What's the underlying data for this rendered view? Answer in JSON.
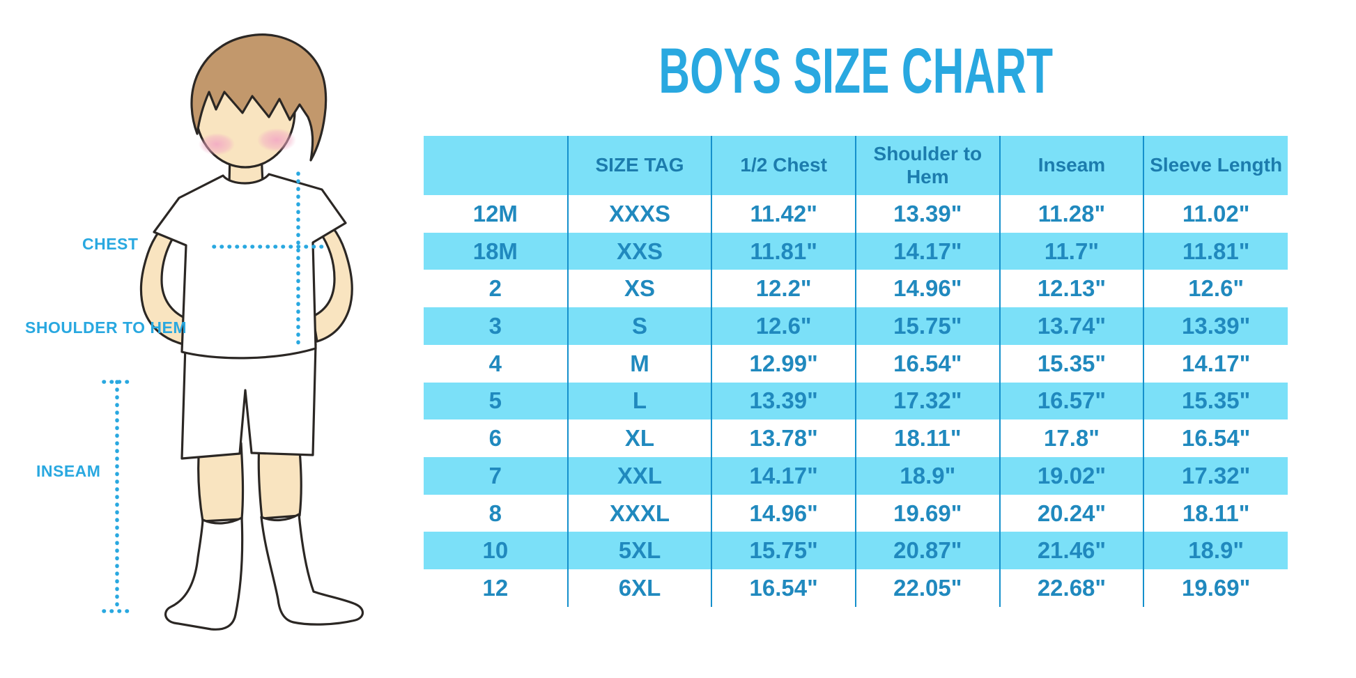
{
  "title": "BOYS SIZE CHART",
  "measurement_labels": {
    "chest": "CHEST",
    "shoulder_to_hem": "SHOULDER TO HEM",
    "inseam": "INSEAM"
  },
  "illustration": {
    "description": "cartoon boy with brown hair, white t-shirt, white shorts and knee-high white socks, hands behind back, with dotted measurement guides for chest, shoulder-to-hem and inseam"
  },
  "colors": {
    "accent_blue": "#29A8E0",
    "table_fill": "#7BE0F8",
    "header_text": "#1C7CAD",
    "cell_text": "#2089BE",
    "grid_line": "#1590CC",
    "skin": "#F9E4C0",
    "hair": "#C2986C",
    "cheek": "#F2A9C4",
    "outline": "#2B2724"
  },
  "chart_data": {
    "type": "table",
    "title": "BOYS SIZE CHART",
    "units": "inches",
    "columns": [
      "",
      "SIZE TAG",
      "1/2 Chest",
      "Shoulder to Hem",
      "Inseam",
      "Sleeve Length"
    ],
    "rows": [
      [
        "12M",
        "XXXS",
        "11.42\"",
        "13.39\"",
        "11.28\"",
        "11.02\""
      ],
      [
        "18M",
        "XXS",
        "11.81\"",
        "14.17\"",
        "11.7\"",
        "11.81\""
      ],
      [
        "2",
        "XS",
        "12.2\"",
        "14.96\"",
        "12.13\"",
        "12.6\""
      ],
      [
        "3",
        "S",
        "12.6\"",
        "15.75\"",
        "13.74\"",
        "13.39\""
      ],
      [
        "4",
        "M",
        "12.99\"",
        "16.54\"",
        "15.35\"",
        "14.17\""
      ],
      [
        "5",
        "L",
        "13.39\"",
        "17.32\"",
        "16.57\"",
        "15.35\""
      ],
      [
        "6",
        "XL",
        "13.78\"",
        "18.11\"",
        "17.8\"",
        "16.54\""
      ],
      [
        "7",
        "XXL",
        "14.17\"",
        "18.9\"",
        "19.02\"",
        "17.32\""
      ],
      [
        "8",
        "XXXL",
        "14.96\"",
        "19.69\"",
        "20.24\"",
        "18.11\""
      ],
      [
        "10",
        "5XL",
        "15.75\"",
        "20.87\"",
        "21.46\"",
        "18.9\""
      ],
      [
        "12",
        "6XL",
        "16.54\"",
        "22.05\"",
        "22.68\"",
        "19.69\""
      ]
    ],
    "layout_hints": {
      "row_striping": "white and light blue alternating, first data row white",
      "gridlines": "vertical only, blue",
      "header_background": "light blue"
    }
  }
}
